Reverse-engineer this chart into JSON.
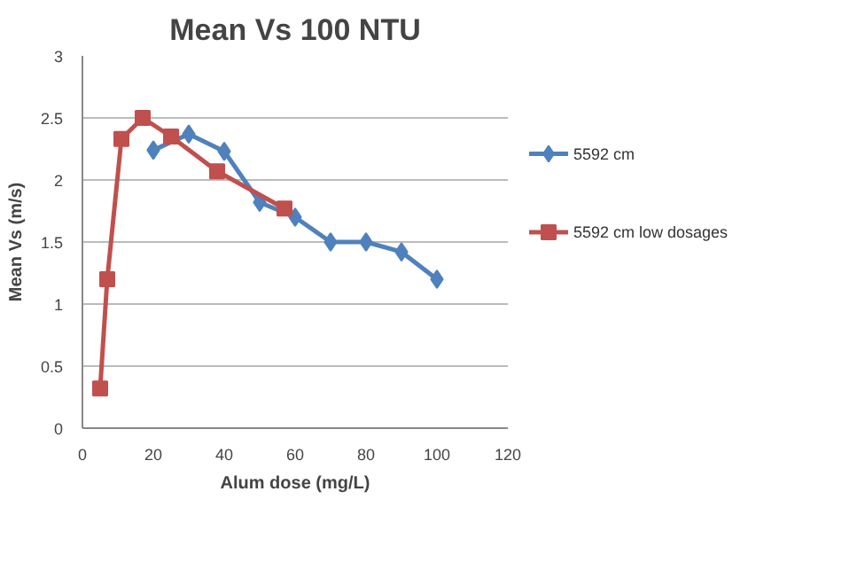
{
  "chart_data": {
    "type": "line",
    "title": "Mean Vs 100 NTU",
    "xlabel": "Alum dose (mg/L)",
    "ylabel": "Mean Vs (m/s)",
    "xlim": [
      0,
      120
    ],
    "xticks": [
      0,
      20,
      40,
      60,
      80,
      100,
      120
    ],
    "ylim": [
      0,
      3
    ],
    "yticks": [
      0,
      0.5,
      1,
      1.5,
      2,
      2.5,
      3
    ],
    "grid": "y",
    "legend": "right",
    "series": [
      {
        "name": "5592 cm",
        "color": "#4f81bd",
        "marker": "diamond",
        "x": [
          20,
          30,
          40,
          50,
          60,
          70,
          80,
          90,
          100
        ],
        "values": [
          2.24,
          2.37,
          2.23,
          1.82,
          1.7,
          1.5,
          1.5,
          1.42,
          1.2
        ]
      },
      {
        "name": "5592 cm low dosages",
        "color": "#c0504d",
        "marker": "square",
        "x": [
          5,
          7,
          11,
          17,
          25,
          38,
          57
        ],
        "values": [
          0.32,
          1.2,
          2.33,
          2.5,
          2.35,
          2.07,
          1.77
        ]
      }
    ]
  }
}
